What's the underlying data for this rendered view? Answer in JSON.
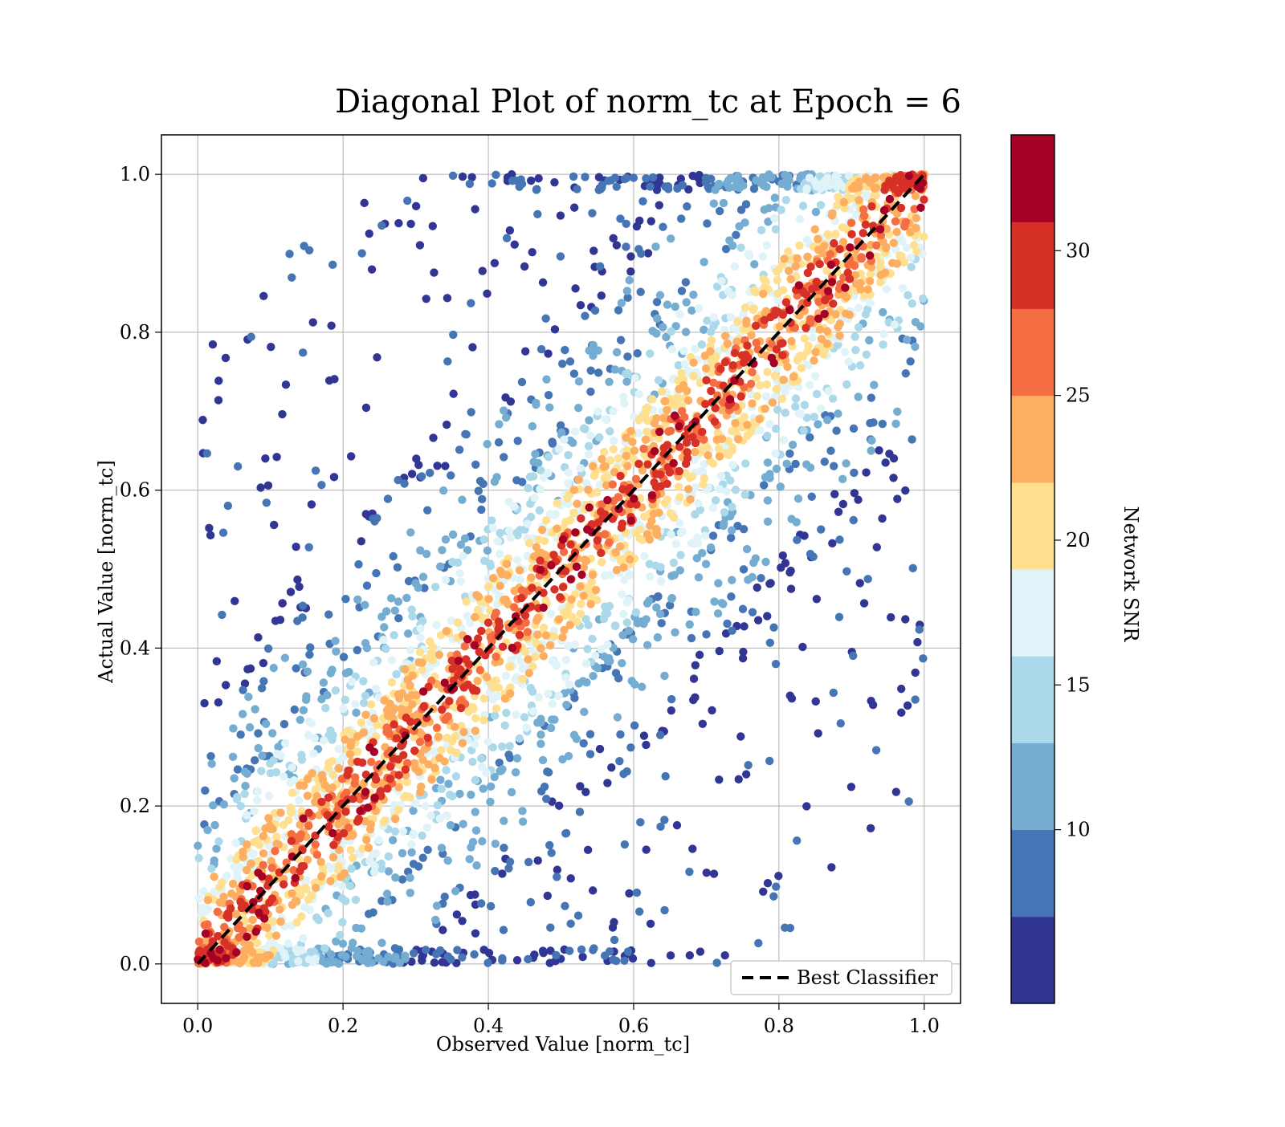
{
  "chart_data": {
    "type": "scatter",
    "title": "Diagonal Plot of norm_tc at Epoch = 6",
    "xlabel": "Observed Value [norm_tc]",
    "ylabel": "Actual Value [norm_tc]",
    "xlim": [
      -0.05,
      1.05
    ],
    "ylim": [
      -0.05,
      1.05
    ],
    "x_ticks": [
      0.0,
      0.2,
      0.4,
      0.6,
      0.8,
      1.0
    ],
    "x_tick_labels": [
      "0.0",
      "0.2",
      "0.4",
      "0.6",
      "0.8",
      "1.0"
    ],
    "y_ticks": [
      0.0,
      0.2,
      0.4,
      0.6,
      0.8,
      1.0
    ],
    "y_tick_labels": [
      "0.0",
      "0.2",
      "0.4",
      "0.6",
      "0.8",
      "1.0"
    ],
    "grid": true,
    "legend": {
      "placement": "lower-right",
      "entries": [
        {
          "label": "Best Classifier",
          "style": "dashed",
          "color": "#000000"
        }
      ]
    },
    "reference_line": {
      "name": "Best Classifier",
      "x": [
        0.0,
        1.0
      ],
      "y": [
        0.0,
        1.0
      ],
      "style": "dashed",
      "color": "#000000"
    },
    "colorbar": {
      "label": "Network SNR",
      "range": [
        4,
        34
      ],
      "ticks": [
        10,
        15,
        20,
        25,
        30
      ],
      "tick_labels": [
        "10",
        "15",
        "20",
        "25",
        "30"
      ],
      "colors": [
        "#313695",
        "#4575b4",
        "#74add1",
        "#abd9e9",
        "#e0f3f8",
        "#fee090",
        "#fdae61",
        "#f46d43",
        "#d73027",
        "#a50026"
      ]
    },
    "scatter_summary": {
      "description_of_distribution": "Points cluster along the diagonal with high SNR near the line and low SNR spreading away from it",
      "point_color_by": "Network SNR",
      "x_range": [
        0.0,
        1.0
      ],
      "y_range": [
        0.0,
        1.0
      ]
    },
    "series": [
      {
        "name": "Best Classifier",
        "x": [
          0.0,
          1.0
        ],
        "values": [
          0.0,
          1.0
        ]
      }
    ]
  }
}
